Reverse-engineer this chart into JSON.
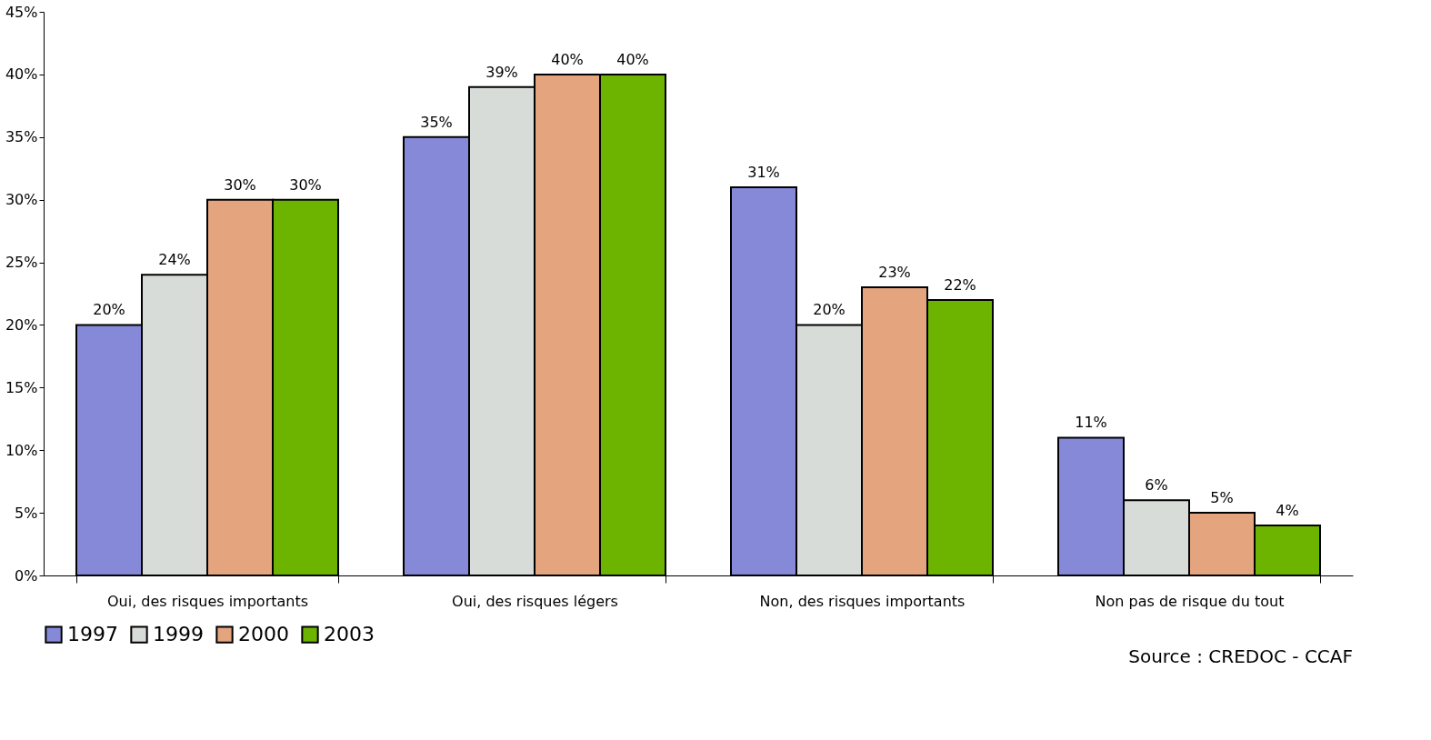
{
  "chart_data": {
    "type": "bar",
    "categories": [
      "Oui, des risques importants",
      "Oui, des risques légers",
      "Non, des risques importants",
      "Non pas de risque du tout"
    ],
    "series": [
      {
        "name": "1997",
        "color": "#8589d8",
        "values": [
          20,
          35,
          31,
          11
        ],
        "value_labels": [
          "20%",
          "35%",
          "31%",
          "11%"
        ]
      },
      {
        "name": "1999",
        "color": "#d8dcd8",
        "values": [
          24,
          39,
          20,
          6
        ],
        "value_labels": [
          "24%",
          "39%",
          "20%",
          "6%"
        ]
      },
      {
        "name": "2000",
        "color": "#e3a47e",
        "values": [
          30,
          40,
          23,
          5
        ],
        "value_labels": [
          "30%",
          "40%",
          "23%",
          "5%"
        ]
      },
      {
        "name": "2003",
        "color": "#6cb400",
        "values": [
          30,
          40,
          22,
          4
        ],
        "value_labels": [
          "30%",
          "40%",
          "22%",
          "4%"
        ]
      }
    ],
    "ylim": [
      0,
      45
    ],
    "yticks": [
      {
        "value": 0,
        "label": "0%"
      },
      {
        "value": 5,
        "label": "5%"
      },
      {
        "value": 10,
        "label": "10%"
      },
      {
        "value": 15,
        "label": "15%"
      },
      {
        "value": 20,
        "label": "20%"
      },
      {
        "value": 25,
        "label": "25%"
      },
      {
        "value": 30,
        "label": "30%"
      },
      {
        "value": 35,
        "label": "35%"
      },
      {
        "value": 40,
        "label": "40%"
      },
      {
        "value": 45,
        "label": "45%"
      }
    ],
    "grid": false,
    "legend": "bottom left",
    "annotations": [
      "Source : CREDOC - CCAF"
    ]
  }
}
